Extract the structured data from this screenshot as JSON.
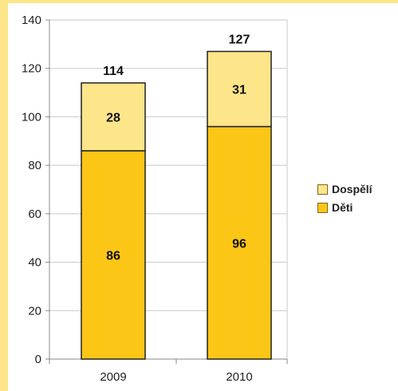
{
  "chart_data": {
    "type": "bar",
    "stacked": true,
    "categories": [
      "2009",
      "2010"
    ],
    "series": [
      {
        "name": "Děti",
        "values": [
          86,
          96
        ],
        "color": "#fbc615"
      },
      {
        "name": "Dospělí",
        "values": [
          28,
          31
        ],
        "color": "#fde58a"
      }
    ],
    "totals": [
      114,
      127
    ],
    "title": "",
    "xlabel": "",
    "ylabel": "",
    "ylim": [
      0,
      140
    ],
    "yticks": [
      0,
      20,
      40,
      60,
      80,
      100,
      120,
      140
    ],
    "grid": true,
    "legend_position": "right",
    "legend_order": [
      "Dospělí",
      "Děti"
    ],
    "colors": {
      "grid": "#c8c8c8",
      "axis": "#888888",
      "bar_outline": "#222222",
      "background_strip": "#fde58a"
    }
  }
}
